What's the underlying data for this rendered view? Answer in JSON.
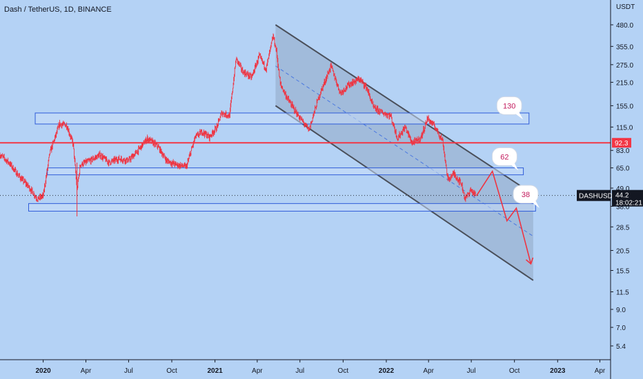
{
  "title": "Dash / TetherUS, 1D, BINANCE",
  "chart_data": {
    "type": "candlestick",
    "symbol": "DASHUSDT",
    "currency_label": "USDT",
    "last_price": "44.2",
    "countdown": "18:02:21",
    "y_scale": "log",
    "y_ticks": [
      "480.0",
      "355.0",
      "275.0",
      "215.0",
      "155.0",
      "115.0",
      "83.0",
      "65.0",
      "49.0",
      "38.0",
      "28.5",
      "20.5",
      "15.5",
      "11.5",
      "9.0",
      "7.0",
      "5.4"
    ],
    "x_ticks": [
      {
        "label": "2020",
        "date": "2020-01-01",
        "bold": true
      },
      {
        "label": "Apr",
        "date": "2020-04-01"
      },
      {
        "label": "Jul",
        "date": "2020-07-01"
      },
      {
        "label": "Oct",
        "date": "2020-10-01"
      },
      {
        "label": "2021",
        "date": "2021-01-01",
        "bold": true
      },
      {
        "label": "Apr",
        "date": "2021-04-01"
      },
      {
        "label": "Jul",
        "date": "2021-07-01"
      },
      {
        "label": "Oct",
        "date": "2021-10-01"
      },
      {
        "label": "2022",
        "date": "2022-01-01",
        "bold": true
      },
      {
        "label": "Apr",
        "date": "2022-04-01"
      },
      {
        "label": "Jul",
        "date": "2022-07-01"
      },
      {
        "label": "Oct",
        "date": "2022-10-01"
      },
      {
        "label": "2023",
        "date": "2023-01-01",
        "bold": true
      },
      {
        "label": "Apr",
        "date": "2023-04-01"
      }
    ],
    "price_path": [
      [
        "2019-10-01",
        78
      ],
      [
        "2019-10-20",
        70
      ],
      [
        "2019-11-10",
        58
      ],
      [
        "2019-12-01",
        50
      ],
      [
        "2019-12-20",
        42
      ],
      [
        "2020-01-01",
        44
      ],
      [
        "2020-01-15",
        80
      ],
      [
        "2020-02-05",
        120
      ],
      [
        "2020-02-20",
        118
      ],
      [
        "2020-03-05",
        90
      ],
      [
        "2020-03-13",
        48
      ],
      [
        "2020-03-20",
        68
      ],
      [
        "2020-04-10",
        72
      ],
      [
        "2020-05-01",
        78
      ],
      [
        "2020-05-20",
        70
      ],
      [
        "2020-06-10",
        74
      ],
      [
        "2020-07-01",
        72
      ],
      [
        "2020-07-20",
        82
      ],
      [
        "2020-08-10",
        98
      ],
      [
        "2020-09-01",
        88
      ],
      [
        "2020-09-20",
        72
      ],
      [
        "2020-10-10",
        68
      ],
      [
        "2020-11-01",
        66
      ],
      [
        "2020-11-20",
        100
      ],
      [
        "2020-12-05",
        108
      ],
      [
        "2020-12-20",
        100
      ],
      [
        "2021-01-05",
        115
      ],
      [
        "2021-01-15",
        140
      ],
      [
        "2021-02-01",
        135
      ],
      [
        "2021-02-15",
        300
      ],
      [
        "2021-03-01",
        250
      ],
      [
        "2021-03-20",
        230
      ],
      [
        "2021-04-05",
        310
      ],
      [
        "2021-04-20",
        260
      ],
      [
        "2021-05-05",
        410
      ],
      [
        "2021-05-12",
        330
      ],
      [
        "2021-05-20",
        210
      ],
      [
        "2021-06-05",
        170
      ],
      [
        "2021-06-25",
        138
      ],
      [
        "2021-07-20",
        110
      ],
      [
        "2021-08-10",
        175
      ],
      [
        "2021-09-05",
        270
      ],
      [
        "2021-09-25",
        185
      ],
      [
        "2021-10-15",
        210
      ],
      [
        "2021-11-05",
        225
      ],
      [
        "2021-11-20",
        200
      ],
      [
        "2021-12-05",
        150
      ],
      [
        "2021-12-25",
        140
      ],
      [
        "2022-01-10",
        135
      ],
      [
        "2022-01-25",
        98
      ],
      [
        "2022-02-10",
        115
      ],
      [
        "2022-02-25",
        92
      ],
      [
        "2022-03-15",
        98
      ],
      [
        "2022-03-30",
        130
      ],
      [
        "2022-04-15",
        115
      ],
      [
        "2022-05-01",
        95
      ],
      [
        "2022-05-12",
        55
      ],
      [
        "2022-05-25",
        60
      ],
      [
        "2022-06-10",
        52
      ],
      [
        "2022-06-18",
        42
      ],
      [
        "2022-06-30",
        48
      ],
      [
        "2022-07-10",
        44
      ]
    ],
    "levels": [
      {
        "name": "red-horizontal",
        "price": 92.3,
        "label": "92.3",
        "color": "#f23645"
      },
      {
        "name": "dotted-last",
        "price": 44.2
      }
    ],
    "zones": [
      {
        "name": "zone-130",
        "from": "2019-12-15",
        "to": "2022-11-01",
        "low": 120,
        "high": 140,
        "bubble": "130"
      },
      {
        "name": "zone-62",
        "from": "2020-01-10",
        "to": "2022-10-20",
        "low": 59,
        "high": 65,
        "bubble": "62"
      },
      {
        "name": "zone-38",
        "from": "2019-12-01",
        "to": "2022-11-15",
        "low": 35.5,
        "high": 39.5,
        "bubble": "38"
      }
    ],
    "channel": {
      "upper": [
        [
          "2021-05-10",
          480
        ],
        [
          "2022-11-10",
          45
        ]
      ],
      "lower": [
        [
          "2021-05-10",
          155
        ],
        [
          "2022-11-10",
          13.5
        ]
      ],
      "mid": [
        [
          "2021-05-10",
          270
        ],
        [
          "2022-11-10",
          25
        ]
      ]
    },
    "projection": [
      [
        "2022-07-12",
        44
      ],
      [
        "2022-08-15",
        62
      ],
      [
        "2022-09-15",
        31
      ],
      [
        "2022-10-05",
        37
      ],
      [
        "2022-11-05",
        17
      ]
    ],
    "colors": {
      "background": "#b4d2f5",
      "candle": "#ef3340",
      "channel_fill": "#9eb7d6",
      "channel_stroke": "#4a4f5a",
      "zone_stroke": "#2e5bd8",
      "projection": "#ef3340",
      "mid_line": "#4a78e0"
    }
  }
}
